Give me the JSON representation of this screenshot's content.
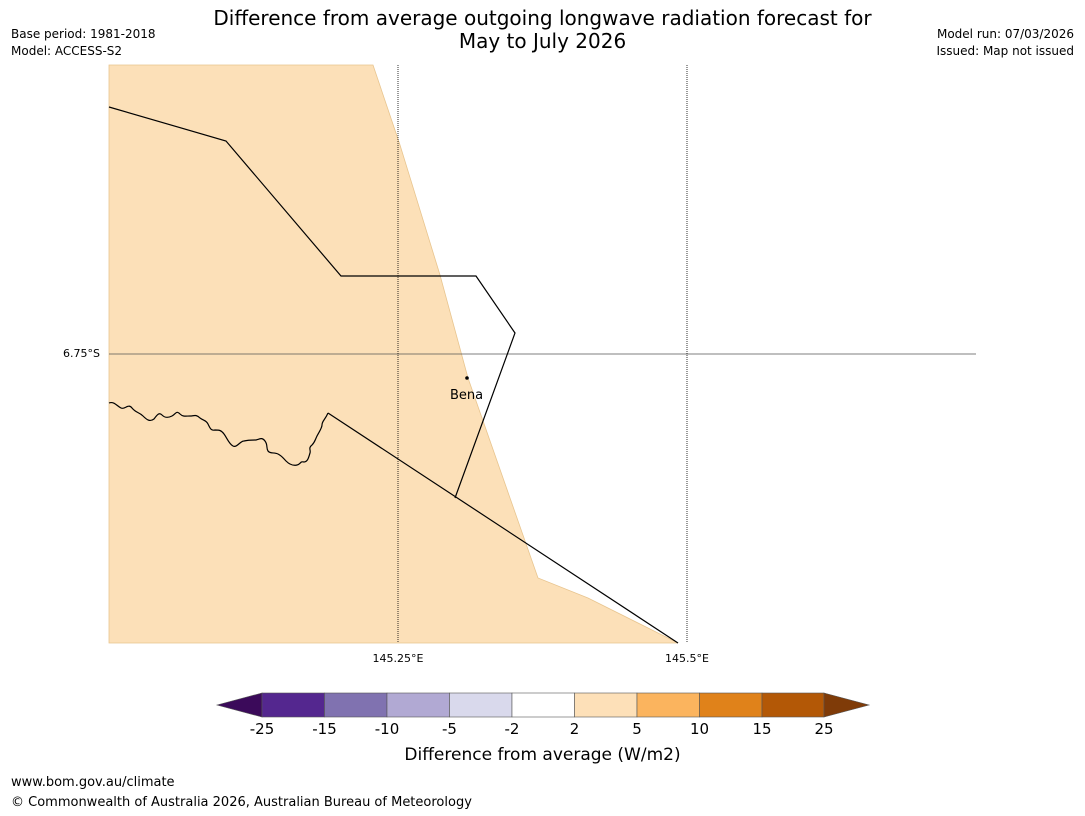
{
  "title": {
    "line1": "Difference from average outgoing longwave radiation forecast for",
    "line2": "May to July 2026"
  },
  "meta_left": {
    "base_period": "Base period: 1981-2018",
    "model": "Model: ACCESS-S2"
  },
  "meta_right": {
    "model_run": "Model run: 07/03/2026",
    "issued": "Issued: Map not issued"
  },
  "map": {
    "lat_labels": [
      "6.75°S"
    ],
    "lon_labels": [
      "145.25°E",
      "145.5°E"
    ],
    "places": [
      {
        "name": "Bena"
      }
    ],
    "region_fill_color": "#fce0b8"
  },
  "colorbar": {
    "ticks": [
      "-25",
      "-15",
      "-10",
      "-5",
      "-2",
      "2",
      "5",
      "10",
      "15",
      "25"
    ],
    "colors": [
      "#3b0a5a",
      "#54278f",
      "#8072b0",
      "#b1a9d3",
      "#d9d9ec",
      "#ffffff",
      "#fde0b8",
      "#fbb45e",
      "#e0821a",
      "#b35806",
      "#7f3b08"
    ],
    "label": "Difference from average (W/m2)"
  },
  "footer": {
    "url": "www.bom.gov.au/climate",
    "copyright": "© Commonwealth of Australia 2026, Australian Bureau of Meteorology"
  }
}
